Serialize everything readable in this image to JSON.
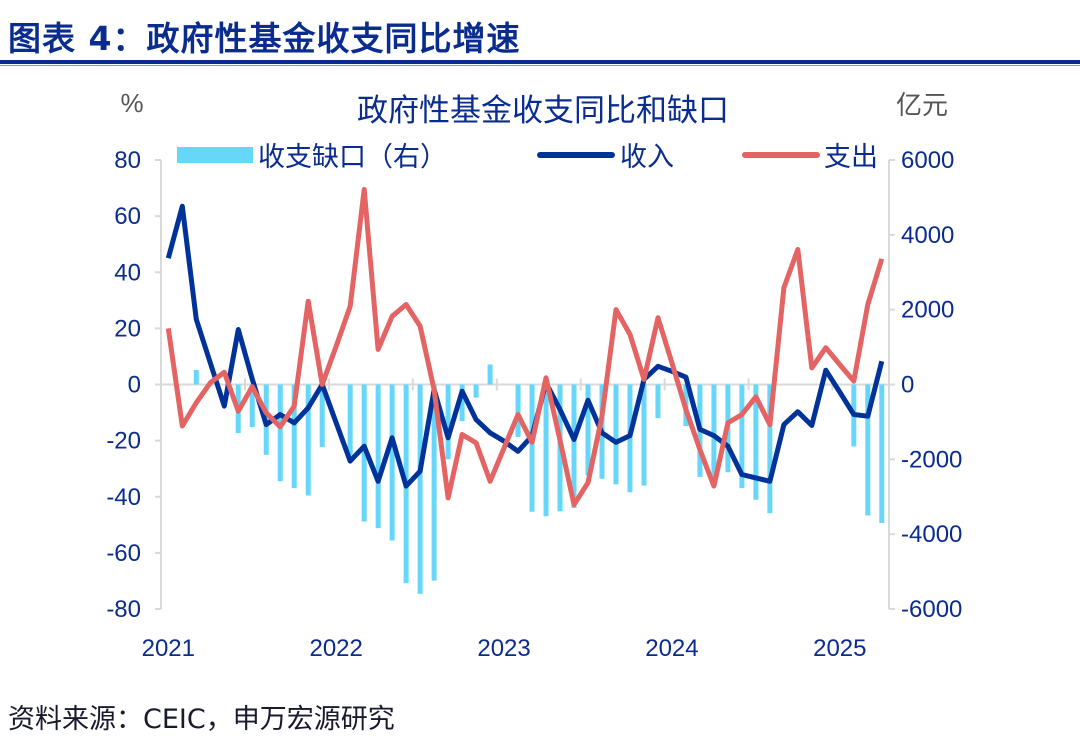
{
  "figure": {
    "title": "图表 4：政府性基金收支同比增速",
    "source": "资料来源：CEIC，申万宏源研究"
  },
  "colors": {
    "gap": "#66d7fb",
    "revenue": "#003399",
    "expenditure": "#e46464",
    "axis": "#d9d9d9",
    "text": "#0a2c8f"
  },
  "chart_data": {
    "type": "bar+line",
    "title": "政府性基金收支同比和缺口",
    "ylabel_left": "%",
    "ylabel_right": "亿元",
    "ylim_left": [
      -80,
      80
    ],
    "ylim_right": [
      -6000,
      6000
    ],
    "yticks_left": [
      "80",
      "60",
      "40",
      "20",
      "0",
      "-20",
      "-40",
      "-60",
      "-80"
    ],
    "yticks_right": [
      "6000",
      "4000",
      "2000",
      "0",
      "-2000",
      "-4000",
      "-6000"
    ],
    "xtick_labels": [
      "2021",
      "2022",
      "2023",
      "2024",
      "2025"
    ],
    "x_start_year": 2021,
    "x_step_months": 1,
    "legend_position": "top",
    "series": [
      {
        "name": "收支缺口（右）",
        "type": "bar",
        "axis": "right",
        "values": [
          0,
          0,
          390,
          50,
          0,
          -1300,
          -1140,
          -1880,
          -2585,
          -2770,
          -2967,
          -1675,
          0,
          -1900,
          -3662,
          -3840,
          -4170,
          -5310,
          -5595,
          -5240,
          -2000,
          -980,
          -350,
          535,
          0,
          -1400,
          -3400,
          -3520,
          -3390,
          -3300,
          -2430,
          -2520,
          -2670,
          -2880,
          -2700,
          -900,
          0,
          -1110,
          -2470,
          -2500,
          -2345,
          -2770,
          -3080,
          -3440,
          0,
          0,
          0,
          0,
          0,
          -1657,
          -3500,
          -3700
        ]
      },
      {
        "name": "收入",
        "type": "line",
        "axis": "left",
        "values": [
          45,
          63.5,
          23.2,
          7.7,
          -7.7,
          19.6,
          2,
          -14.3,
          -10.7,
          -13.7,
          -8.3,
          0,
          -13.7,
          -27.3,
          -22,
          -34.5,
          -19,
          -36.2,
          -30.9,
          -1.8,
          -19,
          -2.4,
          -12.5,
          -17.2,
          -20.2,
          -23.8,
          -18.4,
          0.6,
          -8.9,
          -19.6,
          -5.6,
          -17.2,
          -20.6,
          -18.2,
          1.8,
          6.5,
          4.7,
          2.6,
          -16,
          -18.2,
          -22,
          -32.1,
          -33.3,
          -34.5,
          -14.3,
          -9.7,
          -14.6,
          5.1,
          -2.7,
          -10.7,
          -11.3,
          8.3
        ]
      },
      {
        "name": "支出",
        "type": "line",
        "axis": "left",
        "values": [
          20,
          -14.8,
          -6.5,
          0.6,
          4.4,
          -9.5,
          -0.8,
          -10.1,
          -15.1,
          -7.7,
          29.7,
          0,
          13.7,
          27.9,
          69.5,
          12.5,
          24.3,
          28.5,
          20.8,
          -1.8,
          -40.4,
          -17.8,
          -20.8,
          -34.5,
          -22.6,
          -10.7,
          -20.6,
          2.4,
          -19.8,
          -42.8,
          -35,
          -11.3,
          26.7,
          17.8,
          1.8,
          23.8,
          7.7,
          -8.9,
          -23.2,
          -36.2,
          -13.7,
          -10.7,
          -4.4,
          -14.3,
          34.5,
          48.1,
          5.9,
          13.1,
          7.1,
          1.2,
          28.5,
          44.8
        ]
      }
    ]
  }
}
